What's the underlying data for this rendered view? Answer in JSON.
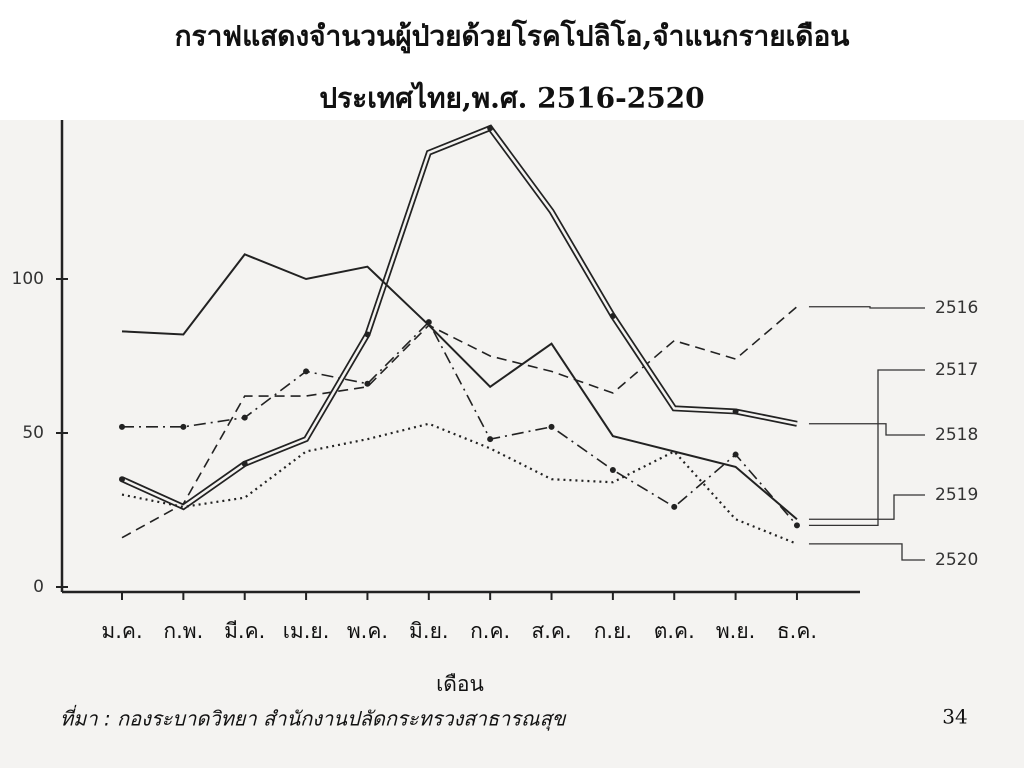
{
  "chart_data": {
    "type": "line",
    "title": "กราฟแสดงจำนวนผู้ป่วยด้วยโรคโปลิโอ,จำแนกรายเดือน",
    "subtitle": "ประเทศไทย,พ.ศ. 2516-2520",
    "x_label": "เดือน",
    "source": "ที่มา : กองระบาดวิทยา สำนักงานปลัดกระทรวงสาธารณสุข",
    "page_number": "34",
    "categories": [
      "ม.ค.",
      "ก.พ.",
      "มี.ค.",
      "เม.ย.",
      "พ.ค.",
      "มิ.ย.",
      "ก.ค.",
      "ส.ค.",
      "ก.ย.",
      "ต.ค.",
      "พ.ย.",
      "ธ.ค."
    ],
    "ylim": [
      0,
      150
    ],
    "yticks": [
      0,
      50,
      100
    ],
    "grid": false,
    "series": [
      {
        "name": "2516",
        "color": "#222222",
        "style": "dashed",
        "values": [
          16,
          27,
          62,
          62,
          65,
          85,
          75,
          70,
          63,
          80,
          74,
          91
        ]
      },
      {
        "name": "2517",
        "color": "#222222",
        "style": "dash-dot",
        "values": [
          52,
          52,
          55,
          70,
          66,
          86,
          48,
          52,
          38,
          26,
          43,
          20
        ]
      },
      {
        "name": "2518",
        "color": "#222222",
        "style": "double",
        "values": [
          35,
          26,
          40,
          48,
          82,
          141,
          149,
          122,
          88,
          58,
          57,
          53
        ]
      },
      {
        "name": "2519",
        "color": "#222222",
        "style": "solid",
        "values": [
          83,
          82,
          108,
          100,
          104,
          85,
          65,
          79,
          49,
          44,
          39,
          22
        ]
      },
      {
        "name": "2520",
        "color": "#222222",
        "style": "dotted",
        "values": [
          30,
          26,
          29,
          44,
          48,
          53,
          45,
          35,
          34,
          44,
          22,
          14
        ]
      }
    ]
  }
}
